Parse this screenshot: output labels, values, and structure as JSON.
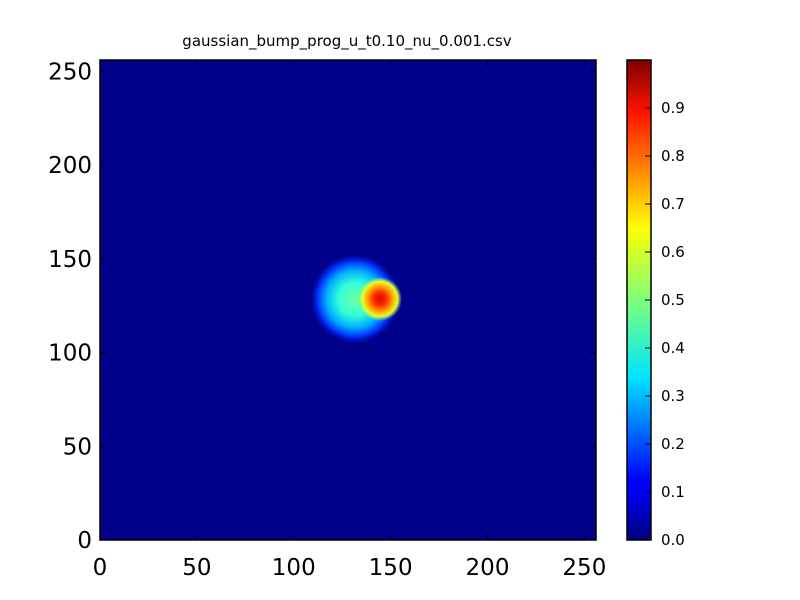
{
  "chart_data": [
    {
      "type": "heatmap",
      "title": "gaussian_bump_prog_u_t0.10_nu_0.001.csv",
      "xlabel": "",
      "ylabel": "",
      "xlim": [
        0,
        256
      ],
      "ylim": [
        0,
        256
      ],
      "xticks": [
        0,
        50,
        100,
        150,
        200,
        250
      ],
      "yticks": [
        0,
        50,
        100,
        150,
        200,
        250
      ],
      "xtick_labels": [
        "0",
        "50",
        "100",
        "150",
        "200",
        "250"
      ],
      "ytick_labels": [
        "0",
        "50",
        "100",
        "150",
        "200",
        "250"
      ],
      "colormap": "jet",
      "grid": false,
      "field": {
        "background_value": 0.0,
        "outer_blob": {
          "center": [
            132,
            128
          ],
          "radius": 24,
          "peak": 0.35
        },
        "inner_peak": {
          "center": [
            146,
            128
          ],
          "radius": 10,
          "peak": 0.95
        }
      },
      "colorbar": {
        "range": [
          0.0,
          1.0
        ],
        "ticks": [
          0.0,
          0.1,
          0.2,
          0.3,
          0.4,
          0.5,
          0.6,
          0.7,
          0.8,
          0.9
        ],
        "tick_labels": [
          "0.0",
          "0.1",
          "0.2",
          "0.3",
          "0.4",
          "0.5",
          "0.6",
          "0.7",
          "0.8",
          "0.9"
        ]
      }
    }
  ]
}
